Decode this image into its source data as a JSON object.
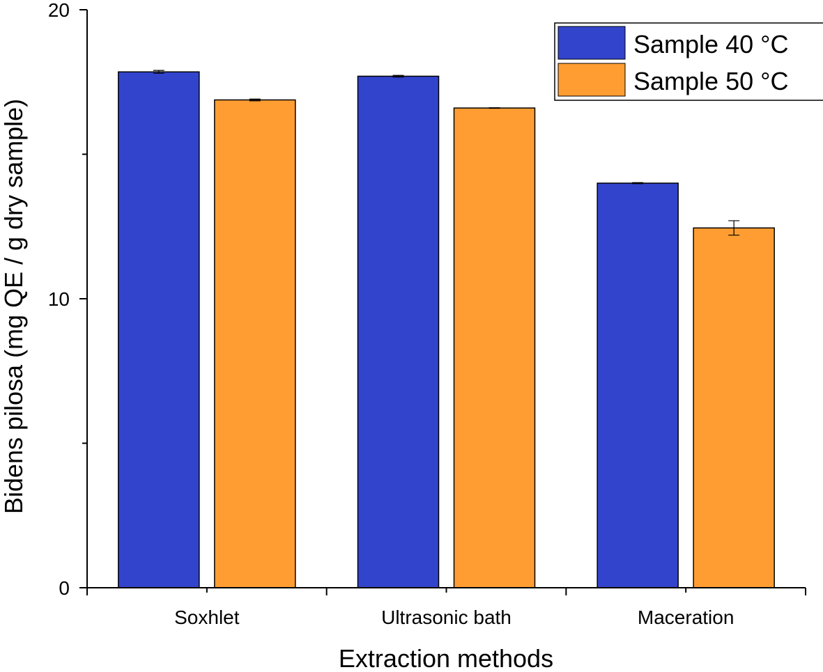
{
  "chart_data": {
    "type": "bar",
    "title": "",
    "xlabel": "Extraction methods",
    "ylabel": "Bidens pilosa (mg QE / g dry sample)",
    "categories": [
      "Soxhlet",
      "Ultrasonic bath",
      "Maceration"
    ],
    "ylim": [
      0,
      20
    ],
    "y_major_ticks": [
      0,
      10,
      20
    ],
    "y_minor_ticks": [
      5,
      15
    ],
    "grid": false,
    "legend_position": "top-right",
    "series": [
      {
        "name": "Sample 40 °C",
        "color": "#3344cc",
        "values": [
          17.85,
          17.7,
          14.0
        ],
        "errors": [
          0.05,
          0.03,
          0.02
        ]
      },
      {
        "name": "Sample 50 °C",
        "color": "#ff9d33",
        "values": [
          16.88,
          16.6,
          12.45
        ],
        "errors": [
          0.03,
          0.01,
          0.25
        ]
      }
    ]
  }
}
